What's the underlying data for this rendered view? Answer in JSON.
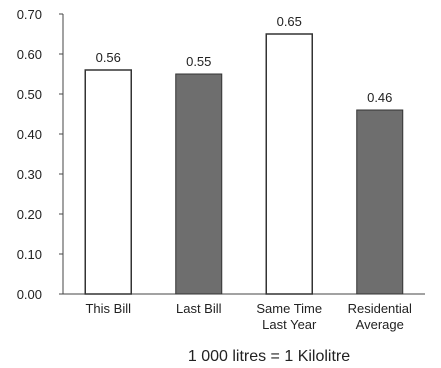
{
  "chart_data": {
    "type": "bar",
    "categories": [
      [
        "This Bill"
      ],
      [
        "Last Bill"
      ],
      [
        "Same Time",
        "Last Year"
      ],
      [
        "Residential",
        "Average"
      ]
    ],
    "values": [
      0.56,
      0.55,
      0.65,
      0.46
    ],
    "value_labels": [
      "0.56",
      "0.55",
      "0.65",
      "0.46"
    ],
    "bar_styles": [
      "outline",
      "filled",
      "outline",
      "filled"
    ],
    "yticks": [
      "0.00",
      "0.10",
      "0.20",
      "0.30",
      "0.40",
      "0.50",
      "0.60",
      "0.70"
    ],
    "ylim": [
      0,
      0.7
    ],
    "grid": false,
    "note": "1 000 litres = 1 Kilolitre",
    "colors": {
      "filled": "#6e6e6e",
      "outline": "#ffffff",
      "stroke": "#333333",
      "axis": "#444444"
    }
  }
}
